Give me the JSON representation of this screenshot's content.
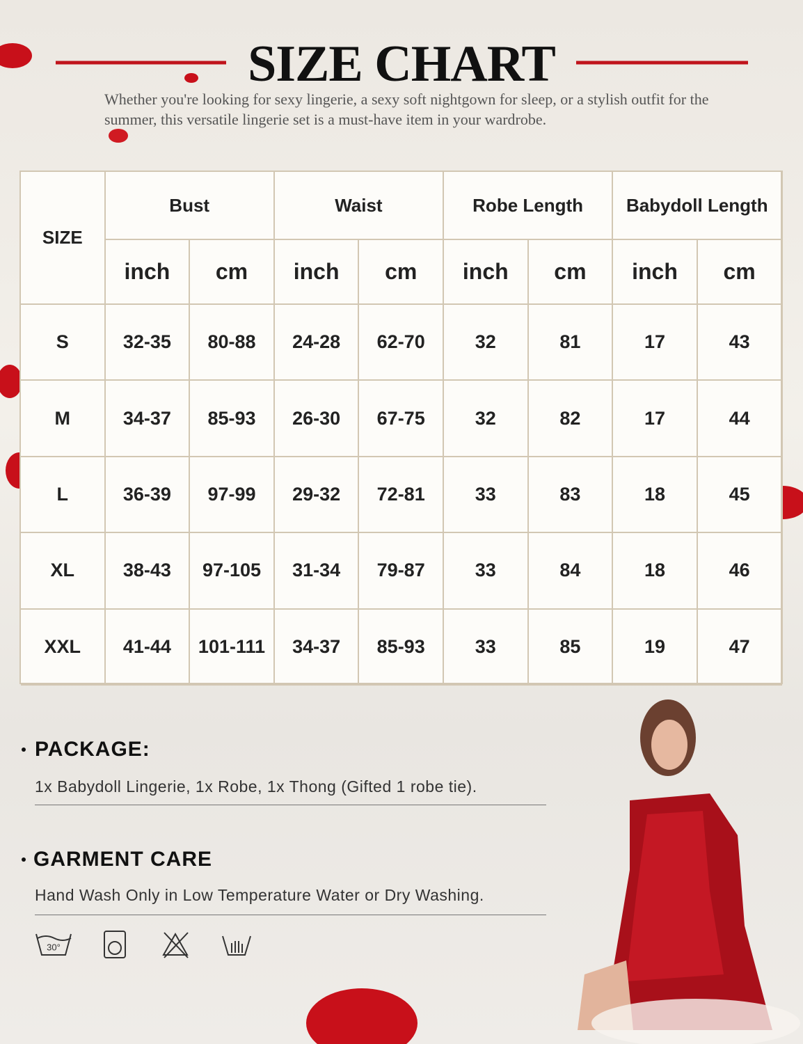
{
  "header": {
    "title": "SIZE CHART",
    "subtitle": "Whether you're looking for sexy lingerie, a sexy soft nightgown for sleep, or a stylish outfit for the summer, this versatile lingerie set is a must-have item in your wardrobe."
  },
  "table": {
    "size_label": "SIZE",
    "groups": [
      "Bust",
      "Waist",
      "Robe Length",
      "Babydoll Length"
    ],
    "units": [
      "inch",
      "cm",
      "inch",
      "cm",
      "inch",
      "cm",
      "inch",
      "cm"
    ],
    "rows": [
      [
        "S",
        "32-35",
        "80-88",
        "24-28",
        "62-70",
        "32",
        "81",
        "17",
        "43"
      ],
      [
        "M",
        "34-37",
        "85-93",
        "26-30",
        "67-75",
        "32",
        "82",
        "17",
        "44"
      ],
      [
        "L",
        "36-39",
        "97-99",
        "29-32",
        "72-81",
        "33",
        "83",
        "18",
        "45"
      ],
      [
        "XL",
        "38-43",
        "97-105",
        "31-34",
        "79-87",
        "33",
        "84",
        "18",
        "46"
      ],
      [
        "XXL",
        "41-44",
        "101-111",
        "34-37",
        "85-93",
        "33",
        "85",
        "19",
        "47"
      ]
    ]
  },
  "package": {
    "title": "PACKAGE:",
    "text": "1x Babydoll Lingerie, 1x Robe, 1x Thong (Gifted 1 robe tie)."
  },
  "care": {
    "title": "GARMENT CARE",
    "text": "Hand Wash Only in Low Temperature Water or Dry Washing.",
    "icon_label": "30°"
  }
}
